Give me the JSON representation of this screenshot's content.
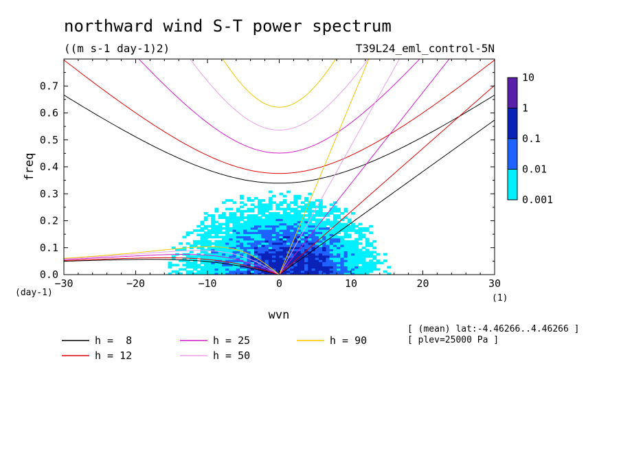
{
  "chart_data": {
    "type": "heatmap",
    "title": "northward wind S-T power spectrum",
    "units": "((m s-1 day-1)2)",
    "run_label": "T39L24_eml_control-5N",
    "xlabel": "wvn",
    "ylabel": "freq",
    "x_unit": "(1)",
    "y_unit": "(day-1)",
    "xlim": [
      -30,
      30
    ],
    "ylim": [
      0,
      0.8
    ],
    "x_ticks": [
      "-30",
      "-20",
      "-10",
      "0",
      "10",
      "20",
      "30"
    ],
    "y_ticks": [
      "0.0",
      "0.1",
      "0.2",
      "0.3",
      "0.4",
      "0.5",
      "0.6",
      "0.7"
    ],
    "colorbar": {
      "levels": [
        "10",
        "1",
        "0.1",
        "0.01",
        "0.001"
      ],
      "colors": [
        "#5a1fa8",
        "#0a22b8",
        "#1e62ff",
        "#00f0ff"
      ]
    },
    "dispersion_curves": [
      {
        "label": "h =  8",
        "h": 8,
        "color": "#000000"
      },
      {
        "label": "h = 12",
        "h": 12,
        "color": "#e00000"
      },
      {
        "label": "h = 25",
        "h": 25,
        "color": "#d21ac8"
      },
      {
        "label": "h = 50",
        "h": 50,
        "color": "#e8a0e8"
      },
      {
        "label": "h = 90",
        "h": 90,
        "color": "#f0c800"
      }
    ],
    "info": [
      "[ (mean) lat:-4.46266..4.46266 ]",
      "[ plev=25000 Pa ]"
    ]
  }
}
